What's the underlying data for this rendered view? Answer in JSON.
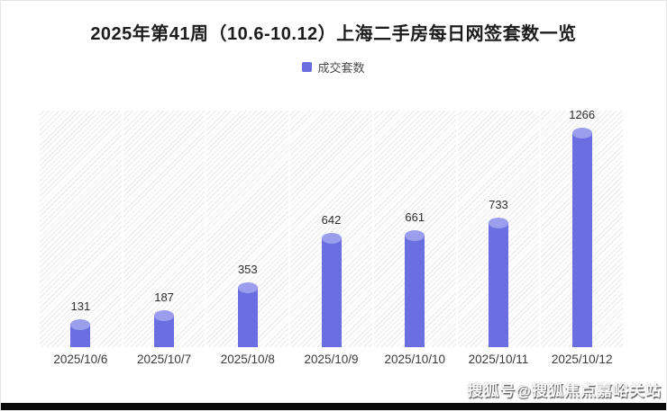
{
  "header": {
    "title": "2025年第41周（10.6-10.12）上海二手房每日网签套数一览"
  },
  "legend": {
    "label": "成交套数",
    "color": "#6B6EE0"
  },
  "chart_data": {
    "type": "bar",
    "title": "2025年第41周（10.6-10.12）上海二手房每日网签套数一览",
    "categories": [
      "2025/10/6",
      "2025/10/7",
      "2025/10/8",
      "2025/10/9",
      "2025/10/10",
      "2025/10/11",
      "2025/10/12"
    ],
    "series": [
      {
        "name": "成交套数",
        "values": [
          131,
          187,
          353,
          642,
          661,
          733,
          1266
        ]
      }
    ],
    "xlabel": "",
    "ylabel": "",
    "ylim": [
      0,
      1400
    ],
    "grid": "hatched-column-background",
    "legend_position": "top",
    "bar_color": "#6B6EE0",
    "bar_cap_color": "#9B9DED"
  },
  "watermark": {
    "text": "搜狐号@搜狐焦点嘉峪关站"
  }
}
